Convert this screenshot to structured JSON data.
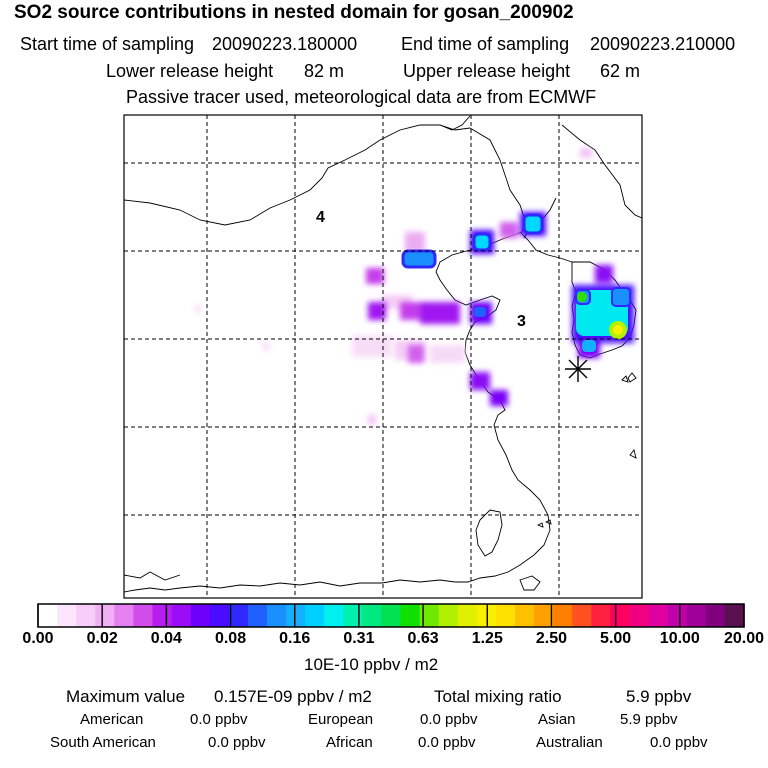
{
  "header": {
    "title": "SO2 source contributions in nested domain for gosan_200902",
    "start_label": "Start time of sampling",
    "start_value": "20090223.180000",
    "end_label": "End time of sampling",
    "end_value": "20090223.210000",
    "lower_label": "Lower release height",
    "lower_value": "82 m",
    "upper_label": "Upper release height",
    "upper_value": "62 m",
    "note": "Passive tracer used, meteorological data are from ECMWF"
  },
  "map": {
    "region_labels": [
      {
        "text": "4",
        "name": "region-label-4"
      },
      {
        "text": "3",
        "name": "region-label-3"
      }
    ],
    "receptor_marker": "asterisk-icon"
  },
  "colorbar": {
    "labels": [
      "0.00",
      "0.02",
      "0.04",
      "0.08",
      "0.16",
      "0.31",
      "0.63",
      "1.25",
      "2.50",
      "5.00",
      "10.00",
      "20.00"
    ],
    "colors": [
      "#ffffff",
      "#fce6fc",
      "#f8ccf8",
      "#f2b0f4",
      "#e680f0",
      "#d24cec",
      "#b81cf0",
      "#9b0cf7",
      "#6d00fb",
      "#4a0cff",
      "#3028ff",
      "#2060ff",
      "#1a90ff",
      "#12b0ff",
      "#00d0ff",
      "#00f0f0",
      "#00f0b0",
      "#00e880",
      "#00e050",
      "#10e000",
      "#70e800",
      "#b0f000",
      "#e0f000",
      "#f8f000",
      "#ffe000",
      "#ffc000",
      "#ffa000",
      "#ff8000",
      "#ff5020",
      "#ff2040",
      "#ff0060",
      "#f00080",
      "#e000a0",
      "#c000a8",
      "#a00098",
      "#800080",
      "#5a1050"
    ],
    "unit": "10E-10 ppbv / m2"
  },
  "stats": {
    "max_label": "Maximum value",
    "max_value": "0.157E-09 ppbv / m2",
    "total_label": "Total mixing ratio",
    "total_value": "5.9 ppbv",
    "regions": [
      {
        "name": "American",
        "value": "0.0 ppbv"
      },
      {
        "name": "European",
        "value": "0.0 ppbv"
      },
      {
        "name": "Asian",
        "value": "5.9 ppbv"
      },
      {
        "name": "South American",
        "value": "0.0 ppbv"
      },
      {
        "name": "African",
        "value": "0.0 ppbv"
      },
      {
        "name": "Australian",
        "value": "0.0 ppbv"
      }
    ]
  }
}
